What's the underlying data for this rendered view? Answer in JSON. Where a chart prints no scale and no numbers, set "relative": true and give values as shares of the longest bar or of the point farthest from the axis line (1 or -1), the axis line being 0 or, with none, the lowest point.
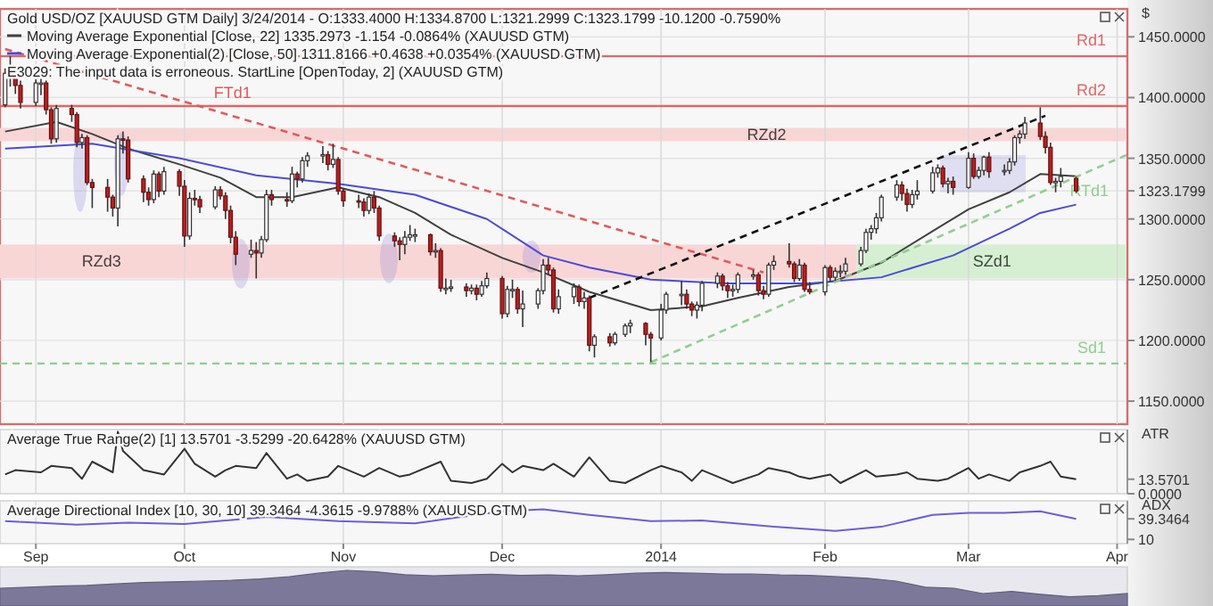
{
  "chart_data": [
    {
      "type": "candlestick",
      "title": "Gold USD/OZ [XAUUSD GTM Daily] 3/24/2014 - O:1333.4000 H:1334.8700 L:1321.2999 C:1323.1799 -10.1200 -0.7590%",
      "ylabel": "$",
      "legend": "top left",
      "grid": true,
      "tick_labels": "y",
      "annotations": [
        "E3029: The input data is erroneous. StartLine [OpenToday, 2] (XAUUSD GTM)"
      ],
      "xlim": [
        "2013-08-26",
        "2014-04-03"
      ],
      "xticks": [
        {
          "value": "2013-09-02",
          "label": null
        },
        {
          "value": "2013-10-01",
          "label": null
        },
        {
          "value": "2013-11-01",
          "label": null
        },
        {
          "value": "2013-12-02",
          "label": null
        },
        {
          "value": "2014-01-02",
          "label": null
        },
        {
          "value": "2014-02-03",
          "label": null
        },
        {
          "value": "2014-03-03",
          "label": null
        },
        {
          "value": "2014-04-01",
          "label": null
        }
      ],
      "ylim": [
        1131,
        1473
      ],
      "yticks": [
        {
          "value": 1150,
          "label": "1150.0000"
        },
        {
          "value": 1200,
          "label": "1200.0000"
        },
        {
          "value": 1250,
          "label": "1250.0000"
        },
        {
          "value": 1300,
          "label": "1300.0000"
        },
        {
          "value": 1323.1799,
          "label": "1323.1799"
        },
        {
          "value": 1350,
          "label": "1350.0000"
        },
        {
          "value": 1400,
          "label": "1400.0000"
        },
        {
          "value": 1450,
          "label": "1450.0000"
        }
      ],
      "x": [
        "2013-08-27",
        "2013-08-28",
        "2013-08-29",
        "2013-08-30",
        "2013-09-02",
        "2013-09-03",
        "2013-09-04",
        "2013-09-05",
        "2013-09-06",
        "2013-09-09",
        "2013-09-10",
        "2013-09-11",
        "2013-09-12",
        "2013-09-13",
        "2013-09-16",
        "2013-09-17",
        "2013-09-18",
        "2013-09-19",
        "2013-09-20",
        "2013-09-23",
        "2013-09-24",
        "2013-09-25",
        "2013-09-26",
        "2013-09-27",
        "2013-09-30",
        "2013-10-01",
        "2013-10-02",
        "2013-10-03",
        "2013-10-04",
        "2013-10-07",
        "2013-10-08",
        "2013-10-09",
        "2013-10-10",
        "2013-10-11",
        "2013-10-14",
        "2013-10-15",
        "2013-10-16",
        "2013-10-17",
        "2013-10-18",
        "2013-10-21",
        "2013-10-22",
        "2013-10-23",
        "2013-10-24",
        "2013-10-25",
        "2013-10-28",
        "2013-10-29",
        "2013-10-30",
        "2013-10-31",
        "2013-11-01",
        "2013-11-04",
        "2013-11-05",
        "2013-11-06",
        "2013-11-07",
        "2013-11-08",
        "2013-11-11",
        "2013-11-12",
        "2013-11-13",
        "2013-11-14",
        "2013-11-15",
        "2013-11-18",
        "2013-11-19",
        "2013-11-20",
        "2013-11-21",
        "2013-11-22",
        "2013-11-25",
        "2013-11-26",
        "2013-11-27",
        "2013-11-28",
        "2013-11-29",
        "2013-12-02",
        "2013-12-03",
        "2013-12-04",
        "2013-12-05",
        "2013-12-06",
        "2013-12-09",
        "2013-12-10",
        "2013-12-11",
        "2013-12-12",
        "2013-12-13",
        "2013-12-16",
        "2013-12-17",
        "2013-12-18",
        "2013-12-19",
        "2013-12-20",
        "2013-12-23",
        "2013-12-24",
        "2013-12-26",
        "2013-12-27",
        "2013-12-30",
        "2013-12-31",
        "2014-01-02",
        "2014-01-03",
        "2014-01-06",
        "2014-01-07",
        "2014-01-08",
        "2014-01-09",
        "2014-01-10",
        "2014-01-13",
        "2014-01-14",
        "2014-01-15",
        "2014-01-16",
        "2014-01-17",
        "2014-01-20",
        "2014-01-21",
        "2014-01-22",
        "2014-01-23",
        "2014-01-24",
        "2014-01-27",
        "2014-01-28",
        "2014-01-29",
        "2014-01-30",
        "2014-01-31",
        "2014-02-03",
        "2014-02-04",
        "2014-02-05",
        "2014-02-06",
        "2014-02-07",
        "2014-02-10",
        "2014-02-11",
        "2014-02-12",
        "2014-02-13",
        "2014-02-14",
        "2014-02-17",
        "2014-02-18",
        "2014-02-19",
        "2014-02-20",
        "2014-02-21",
        "2014-02-24",
        "2014-02-25",
        "2014-02-26",
        "2014-02-27",
        "2014-02-28",
        "2014-03-03",
        "2014-03-04",
        "2014-03-05",
        "2014-03-06",
        "2014-03-07",
        "2014-03-10",
        "2014-03-11",
        "2014-03-12",
        "2014-03-13",
        "2014-03-14",
        "2014-03-17",
        "2014-03-18",
        "2014-03-19",
        "2014-03-20",
        "2014-03-21",
        "2014-03-24"
      ],
      "ohlc": [
        [
          1394,
          1424,
          1392,
          1420
        ],
        [
          1420,
          1434,
          1409,
          1418
        ],
        [
          1418,
          1421,
          1403,
          1410
        ],
        [
          1410,
          1414,
          1391,
          1396
        ],
        [
          1396,
          1415,
          1393,
          1412
        ],
        [
          1412,
          1422,
          1402,
          1412
        ],
        [
          1412,
          1414,
          1386,
          1390
        ],
        [
          1390,
          1392,
          1362,
          1366
        ],
        [
          1366,
          1394,
          1363,
          1391
        ],
        [
          1391,
          1394,
          1380,
          1386
        ],
        [
          1386,
          1388,
          1359,
          1363
        ],
        [
          1363,
          1370,
          1358,
          1367
        ],
        [
          1367,
          1369,
          1328,
          1330
        ],
        [
          1330,
          1333,
          1309,
          1326
        ],
        [
          1326,
          1333,
          1306,
          1318
        ],
        [
          1318,
          1320,
          1302,
          1309
        ],
        [
          1309,
          1369,
          1294,
          1366
        ],
        [
          1366,
          1372,
          1354,
          1365
        ],
        [
          1365,
          1368,
          1330,
          1333
        ],
        [
          1333,
          1336,
          1314,
          1322
        ],
        [
          1322,
          1326,
          1311,
          1316
        ],
        [
          1316,
          1340,
          1313,
          1337
        ],
        [
          1337,
          1339,
          1318,
          1323
        ],
        [
          1323,
          1343,
          1320,
          1339
        ],
        [
          1339,
          1341,
          1319,
          1327
        ],
        [
          1327,
          1332,
          1277,
          1286
        ],
        [
          1286,
          1322,
          1283,
          1317
        ],
        [
          1317,
          1324,
          1311,
          1316
        ],
        [
          1316,
          1319,
          1305,
          1310
        ],
        [
          1310,
          1327,
          1308,
          1324
        ],
        [
          1324,
          1327,
          1316,
          1319
        ],
        [
          1319,
          1322,
          1300,
          1307
        ],
        [
          1307,
          1311,
          1280,
          1285
        ],
        [
          1285,
          1290,
          1262,
          1271
        ],
        [
          1271,
          1283,
          1268,
          1274
        ],
        [
          1274,
          1281,
          1251,
          1272
        ],
        [
          1272,
          1286,
          1268,
          1283
        ],
        [
          1283,
          1324,
          1281,
          1320
        ],
        [
          1320,
          1324,
          1311,
          1316
        ],
        [
          1316,
          1322,
          1310,
          1315
        ],
        [
          1315,
          1343,
          1313,
          1337
        ],
        [
          1337,
          1339,
          1326,
          1333
        ],
        [
          1333,
          1351,
          1330,
          1348
        ],
        [
          1348,
          1355,
          1343,
          1352
        ],
        [
          1352,
          1360,
          1346,
          1353
        ],
        [
          1353,
          1356,
          1340,
          1345
        ],
        [
          1345,
          1362,
          1342,
          1349
        ],
        [
          1349,
          1351,
          1320,
          1323
        ],
        [
          1323,
          1325,
          1310,
          1315
        ],
        [
          1315,
          1320,
          1309,
          1314
        ],
        [
          1314,
          1317,
          1302,
          1307
        ],
        [
          1307,
          1321,
          1304,
          1318
        ],
        [
          1318,
          1323,
          1305,
          1309
        ],
        [
          1309,
          1311,
          1282,
          1286
        ],
        [
          1286,
          1289,
          1277,
          1282
        ],
        [
          1282,
          1285,
          1266,
          1279
        ],
        [
          1279,
          1290,
          1271,
          1285
        ],
        [
          1285,
          1295,
          1282,
          1287
        ],
        [
          1287,
          1292,
          1281,
          1287
        ],
        [
          1287,
          1288,
          1270,
          1273
        ],
        [
          1273,
          1280,
          1268,
          1274
        ],
        [
          1274,
          1276,
          1240,
          1243
        ],
        [
          1243,
          1251,
          1238,
          1243
        ],
        [
          1243,
          1250,
          1240,
          1244
        ],
        [
          1244,
          1247,
          1236,
          1241
        ],
        [
          1241,
          1246,
          1238,
          1243
        ],
        [
          1243,
          1246,
          1233,
          1238
        ],
        [
          1238,
          1249,
          1236,
          1245
        ],
        [
          1245,
          1256,
          1243,
          1251
        ],
        [
          1251,
          1253,
          1218,
          1222
        ],
        [
          1222,
          1245,
          1219,
          1242
        ],
        [
          1242,
          1250,
          1235,
          1242
        ],
        [
          1242,
          1244,
          1222,
          1226
        ],
        [
          1226,
          1241,
          1211,
          1230
        ],
        [
          1230,
          1243,
          1226,
          1241
        ],
        [
          1241,
          1267,
          1238,
          1262
        ],
        [
          1262,
          1268,
          1254,
          1258
        ],
        [
          1258,
          1260,
          1223,
          1226
        ],
        [
          1226,
          1242,
          1222,
          1236
        ],
        [
          1236,
          1247,
          1230,
          1244
        ],
        [
          1244,
          1246,
          1228,
          1232
        ],
        [
          1232,
          1240,
          1226,
          1235
        ],
        [
          1235,
          1237,
          1191,
          1196
        ],
        [
          1196,
          1205,
          1186,
          1203
        ],
        [
          1203,
          1206,
          1195,
          1198
        ],
        [
          1198,
          1207,
          1196,
          1205
        ],
        [
          1205,
          1214,
          1203,
          1212
        ],
        [
          1212,
          1217,
          1206,
          1214
        ],
        [
          1214,
          1215,
          1196,
          1205
        ],
        [
          1205,
          1207,
          1182,
          1202
        ],
        [
          1202,
          1230,
          1200,
          1225
        ],
        [
          1225,
          1240,
          1222,
          1238
        ],
        [
          1238,
          1249,
          1229,
          1238
        ],
        [
          1238,
          1242,
          1226,
          1230
        ],
        [
          1230,
          1232,
          1220,
          1225
        ],
        [
          1225,
          1232,
          1218,
          1229
        ],
        [
          1229,
          1249,
          1224,
          1247
        ],
        [
          1247,
          1256,
          1243,
          1253
        ],
        [
          1253,
          1255,
          1241,
          1245
        ],
        [
          1245,
          1248,
          1235,
          1241
        ],
        [
          1241,
          1246,
          1236,
          1242
        ],
        [
          1242,
          1256,
          1239,
          1254
        ],
        [
          1254,
          1258,
          1250,
          1254
        ],
        [
          1254,
          1256,
          1237,
          1241
        ],
        [
          1241,
          1245,
          1234,
          1238
        ],
        [
          1238,
          1264,
          1236,
          1262
        ],
        [
          1262,
          1270,
          1258,
          1265
        ],
        [
          1265,
          1280,
          1260,
          1263
        ],
        [
          1263,
          1265,
          1248,
          1251
        ],
        [
          1251,
          1267,
          1249,
          1262
        ],
        [
          1262,
          1264,
          1240,
          1242
        ],
        [
          1242,
          1248,
          1238,
          1240
        ],
        [
          1240,
          1262,
          1237,
          1260
        ],
        [
          1260,
          1262,
          1248,
          1252
        ],
        [
          1252,
          1260,
          1249,
          1257
        ],
        [
          1257,
          1262,
          1252,
          1257
        ],
        [
          1257,
          1268,
          1254,
          1263
        ],
        [
          1263,
          1277,
          1261,
          1274
        ],
        [
          1274,
          1292,
          1272,
          1289
        ],
        [
          1289,
          1295,
          1283,
          1292
        ],
        [
          1292,
          1305,
          1288,
          1301
        ],
        [
          1301,
          1320,
          1298,
          1318
        ],
        [
          1318,
          1332,
          1315,
          1328
        ],
        [
          1328,
          1331,
          1315,
          1321
        ],
        [
          1321,
          1325,
          1306,
          1312
        ],
        [
          1312,
          1324,
          1309,
          1320
        ],
        [
          1320,
          1332,
          1316,
          1323
        ],
        [
          1323,
          1343,
          1321,
          1338
        ],
        [
          1338,
          1345,
          1334,
          1342
        ],
        [
          1342,
          1344,
          1326,
          1329
        ],
        [
          1329,
          1334,
          1321,
          1331
        ],
        [
          1331,
          1335,
          1320,
          1326
        ],
        [
          1326,
          1355,
          1325,
          1350
        ],
        [
          1350,
          1354,
          1333,
          1335
        ],
        [
          1335,
          1343,
          1333,
          1340
        ],
        [
          1340,
          1352,
          1336,
          1351
        ],
        [
          1351,
          1355,
          1334,
          1339
        ],
        [
          1339,
          1345,
          1336,
          1340
        ],
        [
          1340,
          1350,
          1337,
          1347
        ],
        [
          1347,
          1369,
          1344,
          1367
        ],
        [
          1367,
          1373,
          1362,
          1370
        ],
        [
          1370,
          1384,
          1366,
          1379
        ],
        [
          1379,
          1392,
          1365,
          1368
        ],
        [
          1368,
          1372,
          1354,
          1359
        ],
        [
          1359,
          1363,
          1328,
          1330
        ],
        [
          1330,
          1334,
          1322,
          1331
        ],
        [
          1331,
          1342,
          1326,
          1335
        ],
        [
          1333.4,
          1334.87,
          1321.2999,
          1323.1799
        ]
      ],
      "series": [
        {
          "type": "line",
          "name": "Moving Average Exponential [Close, 22] 1335.2973 -1.154 -0.0864% (XAUUSD GTM)",
          "color": "#404040",
          "line_style": "solid",
          "x": [
            "2013-08-27",
            "2013-09-06",
            "2013-09-13",
            "2013-09-20",
            "2013-09-30",
            "2013-10-08",
            "2013-10-15",
            "2013-10-22",
            "2013-10-31",
            "2013-11-08",
            "2013-11-15",
            "2013-11-22",
            "2013-12-02",
            "2013-12-10",
            "2013-12-19",
            "2013-12-31",
            "2014-01-10",
            "2014-01-17",
            "2014-01-27",
            "2014-02-05",
            "2014-02-14",
            "2014-02-24",
            "2014-03-03",
            "2014-03-11",
            "2014-03-17",
            "2014-03-24"
          ],
          "values": [
            1372,
            1380,
            1370,
            1358,
            1345,
            1334,
            1318,
            1318,
            1326,
            1318,
            1305,
            1287,
            1268,
            1256,
            1240,
            1225,
            1228,
            1235,
            1244,
            1249,
            1264,
            1290,
            1308,
            1322,
            1337,
            1335.2973
          ]
        },
        {
          "type": "line",
          "name": "Moving Average Exponential(2) [Close, 50] 1311.8166 +0.4638 +0.0354% (XAUUSD GTM)",
          "color": "#4b4bd6",
          "line_style": "solid",
          "x": [
            "2013-08-27",
            "2013-09-13",
            "2013-09-30",
            "2013-10-15",
            "2013-10-31",
            "2013-11-15",
            "2013-11-29",
            "2013-12-10",
            "2013-12-19",
            "2013-12-31",
            "2014-01-15",
            "2014-01-31",
            "2014-02-14",
            "2014-02-28",
            "2014-03-11",
            "2014-03-17",
            "2014-03-24"
          ],
          "values": [
            1358,
            1362,
            1350,
            1336,
            1329,
            1320,
            1300,
            1270,
            1260,
            1250,
            1247,
            1247,
            1252,
            1270,
            1292,
            1305,
            1311.8166
          ]
        },
        {
          "type": "line",
          "name": "FTd1",
          "color": "#e05a5a",
          "line_style": "dashed",
          "x": [
            "2013-08-27",
            "2014-01-22"
          ],
          "values": [
            1440,
            1256
          ]
        },
        {
          "type": "line",
          "color": "#111111",
          "line_style": "dashed",
          "x": [
            "2013-12-19",
            "2014-03-18"
          ],
          "values": [
            1235,
            1385
          ]
        },
        {
          "type": "line",
          "name": "RTd1",
          "color": "#8fcf8f",
          "line_style": "dashed",
          "x": [
            "2013-12-31",
            "2014-04-03"
          ],
          "values": [
            1182,
            1353
          ]
        }
      ],
      "ref_lines": [
        {
          "axis": "y",
          "value": 1434,
          "label": "Rd1",
          "color": "#e06666",
          "line_style": "solid"
        },
        {
          "axis": "y",
          "value": 1393,
          "label": "Rd2",
          "color": "#e06666",
          "line_style": "solid"
        },
        {
          "axis": "y",
          "value": 1181,
          "label": "Sd1",
          "color": "#8fcf8f",
          "line_style": "dashed"
        }
      ],
      "bands": [
        {
          "axis": "y",
          "from": 1364,
          "to": 1375,
          "label": "RZd2",
          "color": "#f9d6d6"
        },
        {
          "axis": "y",
          "from": 1251,
          "to": 1279,
          "label": "RZd3",
          "color": "#f9d6d6"
        },
        {
          "axis": "y",
          "from": 1251,
          "to": 1279,
          "label": "SZd1",
          "color": "#d6efd2"
        }
      ]
    },
    {
      "type": "line",
      "title": "Average True Range(2) [1] 13.5701 -3.5299 -20.6428% (XAUUSD GTM)",
      "ylabel": "ATR",
      "grid": "x",
      "tick_labels": "y",
      "xlim": [
        "2013-08-26",
        "2014-04-03"
      ],
      "xticks": [
        {
          "value": "2013-09-02",
          "label": null
        },
        {
          "value": "2013-10-01",
          "label": null
        },
        {
          "value": "2013-11-01",
          "label": null
        },
        {
          "value": "2013-12-02",
          "label": null
        },
        {
          "value": "2014-01-02",
          "label": null
        },
        {
          "value": "2014-02-03",
          "label": null
        },
        {
          "value": "2014-03-03",
          "label": null
        },
        {
          "value": "2014-04-01",
          "label": null
        }
      ],
      "ylim": [
        0,
        60
      ],
      "yticks": [
        {
          "value": 0,
          "label": "0.0000"
        },
        {
          "value": 13.5701,
          "label": "13.5701"
        }
      ],
      "series": [
        {
          "color": "#333333",
          "x": [
            "2013-08-27",
            "2013-08-29",
            "2013-09-03",
            "2013-09-05",
            "2013-09-09",
            "2013-09-11",
            "2013-09-13",
            "2013-09-17",
            "2013-09-18",
            "2013-09-19",
            "2013-09-23",
            "2013-09-25",
            "2013-09-27",
            "2013-10-01",
            "2013-10-03",
            "2013-10-07",
            "2013-10-09",
            "2013-10-11",
            "2013-10-15",
            "2013-10-17",
            "2013-10-21",
            "2013-10-23",
            "2013-10-25",
            "2013-10-29",
            "2013-10-31",
            "2013-11-05",
            "2013-11-08",
            "2013-11-12",
            "2013-11-14",
            "2013-11-20",
            "2013-11-22",
            "2013-11-26",
            "2013-11-29",
            "2013-12-02",
            "2013-12-04",
            "2013-12-06",
            "2013-12-10",
            "2013-12-12",
            "2013-12-16",
            "2013-12-19",
            "2013-12-23",
            "2013-12-26",
            "2013-12-31",
            "2014-01-02",
            "2014-01-06",
            "2014-01-08",
            "2014-01-10",
            "2014-01-14",
            "2014-01-16",
            "2014-01-21",
            "2014-01-23",
            "2014-01-27",
            "2014-01-29",
            "2014-01-31",
            "2014-02-04",
            "2014-02-06",
            "2014-02-11",
            "2014-02-13",
            "2014-02-17",
            "2014-02-19",
            "2014-02-21",
            "2014-02-25",
            "2014-02-27",
            "2014-03-03",
            "2014-03-05",
            "2014-03-07",
            "2014-03-11",
            "2014-03-13",
            "2014-03-17",
            "2014-03-19",
            "2014-03-21",
            "2014-03-24"
          ],
          "values": [
            18,
            22,
            20,
            26,
            24,
            14,
            30,
            20,
            58,
            40,
            22,
            20,
            18,
            42,
            28,
            16,
            22,
            26,
            24,
            38,
            14,
            18,
            12,
            16,
            26,
            16,
            24,
            16,
            18,
            30,
            12,
            10,
            14,
            28,
            20,
            26,
            22,
            28,
            16,
            34,
            12,
            10,
            22,
            26,
            20,
            12,
            22,
            14,
            10,
            18,
            24,
            20,
            16,
            14,
            18,
            10,
            22,
            16,
            18,
            20,
            14,
            12,
            14,
            24,
            14,
            18,
            12,
            20,
            26,
            30,
            16,
            13.5701
          ]
        }
      ]
    },
    {
      "type": "line",
      "title": "Average Directional Index [10, 30, 10] 39.3464 -4.3615 -9.9788% (XAUUSD GTM)",
      "ylabel": "ADX",
      "grid": "x",
      "xlim": [
        "2013-08-26",
        "2014-04-03"
      ],
      "xticks": [
        {
          "value": "2013-09-02",
          "label": "Sep"
        },
        {
          "value": "2013-10-01",
          "label": "Oct"
        },
        {
          "value": "2013-11-01",
          "label": "Nov"
        },
        {
          "value": "2013-12-02",
          "label": "Dec"
        },
        {
          "value": "2014-01-02",
          "label": "2014"
        },
        {
          "value": "2014-02-03",
          "label": "Feb"
        },
        {
          "value": "2014-03-03",
          "label": "Mar"
        },
        {
          "value": "2014-04-01",
          "label": "Apr"
        }
      ],
      "ylim": [
        4,
        65
      ],
      "yticks": [
        10,
        {
          "value": 39.3464,
          "label": "39.3464"
        }
      ],
      "series": [
        {
          "color": "#6a5fd8",
          "x": [
            "2013-08-27",
            "2013-09-10",
            "2013-09-20",
            "2013-10-01",
            "2013-10-17",
            "2013-10-31",
            "2013-11-15",
            "2013-12-02",
            "2013-12-10",
            "2013-12-19",
            "2013-12-31",
            "2014-01-10",
            "2014-01-24",
            "2014-02-05",
            "2014-02-14",
            "2014-02-24",
            "2014-03-03",
            "2014-03-10",
            "2014-03-17",
            "2014-03-24"
          ],
          "values": [
            36,
            31,
            34,
            32,
            42,
            36,
            33,
            50,
            53,
            45,
            36,
            37,
            28,
            22,
            28,
            45,
            48,
            48,
            50,
            39.3464
          ]
        }
      ]
    },
    {
      "type": "area",
      "relative": true,
      "tick_labels": false,
      "color": "#7b7899",
      "categories": [
        null,
        null,
        null,
        null,
        null,
        null,
        null,
        null,
        null,
        null,
        null,
        null,
        null,
        null,
        null,
        null,
        null,
        null,
        null,
        null,
        null,
        null,
        null,
        null,
        null,
        null,
        null,
        null,
        null,
        null,
        null,
        null,
        null,
        null,
        null,
        null,
        null,
        null,
        null,
        null
      ],
      "values": [
        0.5,
        0.53,
        0.56,
        0.58,
        0.62,
        0.66,
        0.68,
        0.7,
        0.72,
        0.76,
        0.82,
        0.92,
        1,
        0.96,
        0.88,
        0.85,
        0.87,
        0.89,
        0.86,
        0.87,
        0.85,
        0.88,
        0.92,
        0.94,
        0.92,
        0.9,
        0.9,
        0.87,
        0.86,
        0.82,
        0.78,
        0.7,
        0.53,
        0.5,
        0.35,
        0.41,
        0.33,
        0.26,
        0.29,
        0.35
      ]
    }
  ]
}
